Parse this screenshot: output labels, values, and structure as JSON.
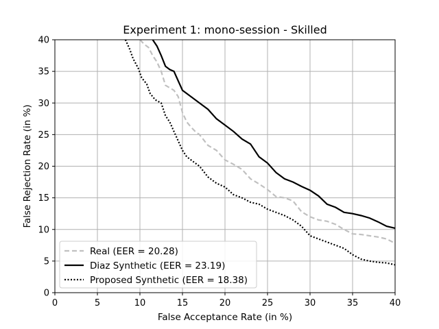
{
  "chart_data": {
    "type": "line",
    "title": "Experiment 1: mono-session - Skilled",
    "xlabel": "False Acceptance Rate (in %)",
    "ylabel": "False Rejection Rate (in %)",
    "xlim": [
      0,
      40
    ],
    "ylim": [
      0,
      40
    ],
    "xticks": [
      "0",
      "5",
      "10",
      "15",
      "20",
      "25",
      "30",
      "35",
      "40"
    ],
    "yticks": [
      "0",
      "5",
      "10",
      "15",
      "20",
      "25",
      "30",
      "35",
      "40"
    ],
    "grid": true,
    "legend_position": "bottom-left",
    "series": [
      {
        "name": "Real (EER = 20.28)",
        "color": "#c0c0c0",
        "style": "dashed",
        "x": [
          10.0,
          10.5,
          11.0,
          11.5,
          12.0,
          12.5,
          13.0,
          14.0,
          14.5,
          15.0,
          15.5,
          16.0,
          16.5,
          17.0,
          18.0,
          19.0,
          20.0,
          21.0,
          22.0,
          23.0,
          24.0,
          25.0,
          26.0,
          27.0,
          28.0,
          29.0,
          30.0,
          31.0,
          32.0,
          33.0,
          34.0,
          35.0,
          36.0,
          37.0,
          38.0,
          39.0,
          40.0
        ],
        "y": [
          40.0,
          39.3,
          38.8,
          37.5,
          36.5,
          35.0,
          32.8,
          32.0,
          31.0,
          28.5,
          27.0,
          26.2,
          25.5,
          25.0,
          23.3,
          22.5,
          21.0,
          20.3,
          19.5,
          18.0,
          17.2,
          16.3,
          15.2,
          15.0,
          14.5,
          12.8,
          12.0,
          11.5,
          11.3,
          10.8,
          10.0,
          9.3,
          9.2,
          9.0,
          8.8,
          8.5,
          7.8
        ]
      },
      {
        "name": "Diaz Synthetic (EER = 23.19)",
        "color": "#000000",
        "style": "solid",
        "x": [
          11.5,
          12.0,
          12.5,
          13.0,
          13.5,
          14.0,
          14.5,
          15.0,
          16.0,
          17.0,
          18.0,
          19.0,
          20.0,
          21.0,
          22.0,
          23.0,
          24.0,
          25.0,
          26.0,
          27.0,
          28.0,
          29.0,
          30.0,
          31.0,
          32.0,
          33.0,
          34.0,
          35.0,
          36.0,
          37.0,
          38.0,
          39.0,
          40.0
        ],
        "y": [
          40.0,
          39.0,
          37.5,
          35.8,
          35.3,
          35.0,
          33.5,
          32.0,
          31.0,
          30.0,
          29.0,
          27.5,
          26.5,
          25.5,
          24.3,
          23.5,
          21.5,
          20.5,
          19.0,
          18.0,
          17.5,
          16.8,
          16.2,
          15.3,
          14.0,
          13.5,
          12.7,
          12.5,
          12.2,
          11.8,
          11.2,
          10.5,
          10.2
        ]
      },
      {
        "name": "Proposed Synthetic (EER = 18.38)",
        "color": "#000000",
        "style": "dotted",
        "x": [
          8.3,
          8.8,
          9.2,
          9.8,
          10.2,
          10.8,
          11.2,
          11.8,
          12.5,
          13.0,
          13.5,
          14.0,
          14.5,
          15.0,
          15.5,
          16.0,
          17.0,
          18.0,
          19.0,
          20.0,
          21.0,
          22.0,
          23.0,
          24.0,
          25.0,
          26.0,
          27.0,
          28.0,
          29.0,
          30.0,
          31.0,
          32.0,
          33.0,
          34.0,
          35.0,
          36.0,
          37.0,
          38.0,
          39.0,
          40.0
        ],
        "y": [
          40.0,
          38.5,
          37.0,
          35.5,
          34.0,
          33.0,
          31.5,
          30.5,
          30.0,
          28.0,
          27.0,
          25.5,
          24.0,
          22.5,
          21.5,
          21.0,
          20.0,
          18.3,
          17.3,
          16.7,
          15.5,
          15.0,
          14.3,
          14.0,
          13.2,
          12.7,
          12.2,
          11.5,
          10.5,
          9.0,
          8.5,
          8.0,
          7.5,
          7.0,
          6.0,
          5.3,
          5.0,
          4.8,
          4.7,
          4.4
        ]
      }
    ]
  }
}
